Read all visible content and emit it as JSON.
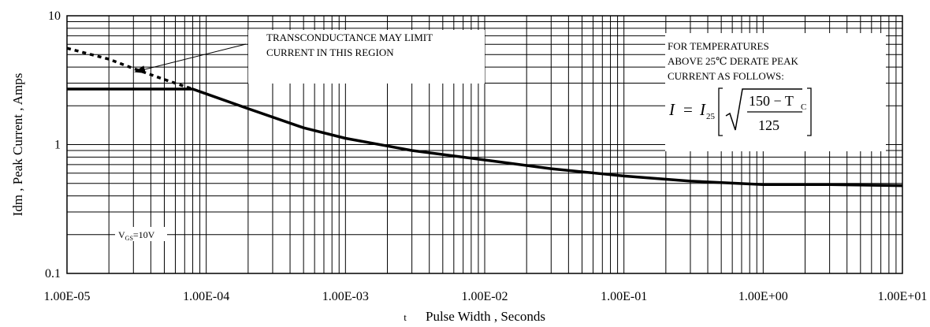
{
  "chart_data": {
    "type": "line",
    "xlabel_prefix": "t",
    "xlabel": "Pulse Width , Seconds",
    "ylabel": "Idm , Peak Current , Amps",
    "xscale": "log",
    "yscale": "log",
    "xlim": [
      1e-05,
      10
    ],
    "ylim": [
      0.1,
      10
    ],
    "grid": true,
    "x_tick_labels": [
      "1.00E-05",
      "1.00E-04",
      "1.00E-03",
      "1.00E-02",
      "1.00E-01",
      "1.00E+00",
      "1.00E+01"
    ],
    "y_tick_labels": [
      "0.1",
      "1",
      "10"
    ],
    "series": [
      {
        "style": "solid",
        "x": [
          1e-05,
          2e-05,
          4e-05,
          8e-05,
          0.0002,
          0.0005,
          0.001,
          0.003,
          0.01,
          0.03,
          0.1,
          0.3,
          1,
          3,
          10
        ],
        "y": [
          2.7,
          2.7,
          2.7,
          2.7,
          1.9,
          1.35,
          1.12,
          0.9,
          0.76,
          0.65,
          0.57,
          0.52,
          0.49,
          0.49,
          0.48
        ]
      },
      {
        "style": "dotted",
        "x": [
          1e-05,
          2e-05,
          3e-05,
          5e-05,
          8e-05
        ],
        "y": [
          5.6,
          4.6,
          3.9,
          3.2,
          2.7
        ]
      }
    ],
    "annotations": {
      "transconductance": [
        "TRANSCONDUCTANCE   MAY   LIMIT",
        "CURRENT   IN   THIS   REGION"
      ],
      "derate": [
        "FOR   TEMPERATURES",
        "ABOVE   25℃  DERATE   PEAK",
        "CURRENT   AS   FOLLOWS:"
      ],
      "formula": {
        "lhs": "I",
        "equals": "=",
        "i25": "I",
        "i25_sub": "25",
        "numerator": "150 − T",
        "numerator_sub": "C",
        "denominator": "125"
      },
      "vgs": {
        "main": "V",
        "sub": "GS",
        "rest": "=10V"
      }
    }
  }
}
